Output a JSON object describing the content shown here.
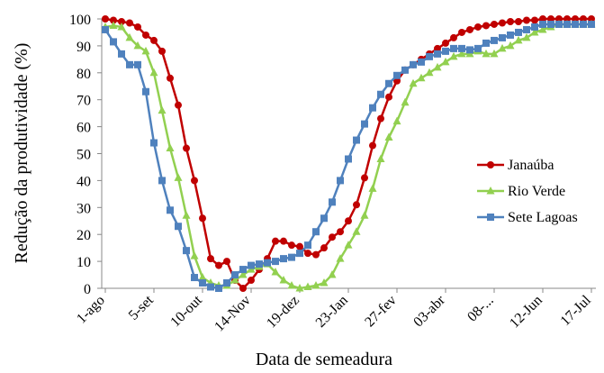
{
  "chart_data": {
    "type": "line",
    "y_label": "Redução da produtividade (%)",
    "x_label": "Data de semeadura",
    "categories": [
      "1-ago",
      null,
      null,
      null,
      null,
      null,
      "5-set",
      null,
      null,
      null,
      null,
      null,
      "10-out",
      null,
      null,
      null,
      null,
      null,
      "14-Nov",
      null,
      null,
      null,
      null,
      null,
      "19-dez",
      null,
      null,
      null,
      null,
      null,
      "23-Jan",
      null,
      null,
      null,
      null,
      null,
      "27-fev",
      null,
      null,
      null,
      null,
      null,
      "03-abr",
      null,
      null,
      null,
      null,
      null,
      "08-...",
      null,
      null,
      null,
      null,
      null,
      "12-Jun",
      null,
      null,
      null,
      null,
      null,
      "17-Jul"
    ],
    "series": [
      {
        "name": "Janaúba",
        "color": "#c00000",
        "marker": "circle",
        "values": [
          100,
          99.5,
          99,
          98.5,
          97,
          94,
          92,
          88,
          78,
          68,
          52,
          40,
          26,
          11,
          8.5,
          10,
          3,
          0,
          3,
          7,
          11,
          17.5,
          17.5,
          16,
          15.5,
          13,
          12.5,
          15,
          19,
          21,
          25,
          31,
          41,
          53,
          63,
          71,
          77,
          81,
          83,
          85,
          87,
          89,
          91,
          93,
          95,
          96,
          97,
          97.5,
          98,
          98.5,
          99,
          99,
          99.5,
          99.5,
          100,
          100,
          100,
          100,
          100,
          100,
          100
        ]
      },
      {
        "name": "Rio Verde",
        "color": "#92d050",
        "marker": "triangle",
        "values": [
          97,
          97.5,
          97,
          93,
          90,
          88,
          80,
          66,
          52,
          41,
          27,
          12,
          4,
          2,
          1,
          1,
          3,
          5,
          7,
          8,
          9,
          6,
          3,
          1,
          0,
          0.5,
          1,
          2,
          5,
          11,
          16,
          21,
          27,
          37,
          48,
          56,
          62,
          69,
          76,
          78,
          80,
          82,
          84,
          86,
          87,
          87,
          88,
          87,
          87,
          89,
          90,
          92,
          93,
          95,
          96,
          97,
          98,
          98,
          98,
          98,
          98
        ]
      },
      {
        "name": "Sete Lagoas",
        "color": "#4f81bd",
        "marker": "square",
        "values": [
          96,
          91.5,
          87,
          83,
          83,
          73,
          54,
          40,
          29,
          23,
          14,
          4,
          2,
          0.5,
          0,
          2,
          5,
          7,
          8.5,
          9,
          9.5,
          10,
          11,
          11.5,
          13,
          16,
          21,
          26,
          32,
          40,
          48,
          55,
          61,
          67,
          72,
          76,
          79,
          81,
          83,
          84,
          86,
          87,
          88,
          89,
          89,
          88.5,
          89,
          91,
          92,
          93,
          94,
          95,
          96,
          97,
          98,
          98,
          98,
          98,
          98,
          98,
          98
        ]
      }
    ],
    "ylim": [
      0,
      100
    ],
    "yticks": [
      0,
      10,
      20,
      30,
      40,
      50,
      60,
      70,
      80,
      90,
      100
    ],
    "legend": "right"
  }
}
